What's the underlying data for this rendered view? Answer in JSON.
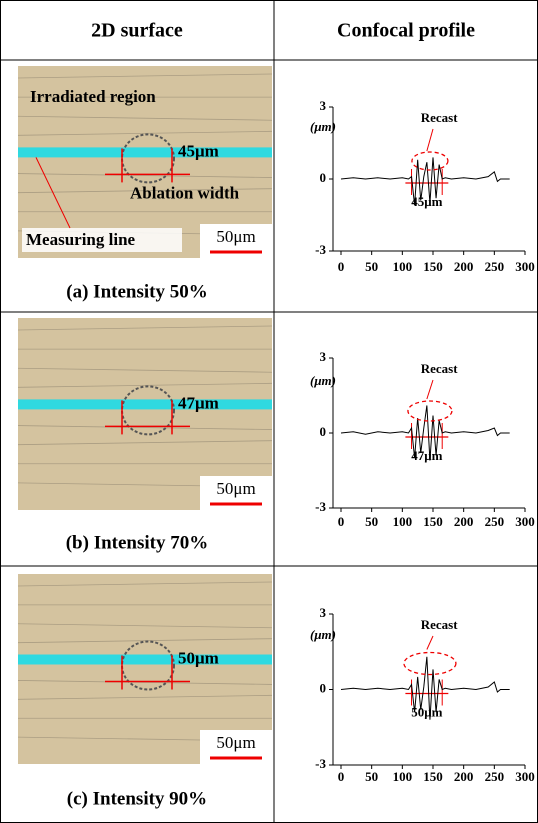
{
  "header": {
    "left": "2D surface",
    "right": "Confocal profile"
  },
  "panels": [
    {
      "caption": "(a) Intensity 50%",
      "image_labels": {
        "region": "Irradiated region",
        "width": "45μm",
        "width_name": "Ablation width",
        "line": "Measuring line",
        "scale": "50μm"
      }
    },
    {
      "caption": "(b) Intensity 70%",
      "image_labels": {
        "width": "47μm",
        "scale": "50μm"
      }
    },
    {
      "caption": "(c) Intensity 90%",
      "image_labels": {
        "width": "50μm",
        "scale": "50μm"
      }
    }
  ],
  "chart_data": [
    {
      "type": "line",
      "ylabel": "(μm)",
      "annotation": "Recast",
      "width_label": "45μm",
      "x": [
        0,
        20,
        40,
        60,
        80,
        100,
        110,
        115,
        120,
        125,
        130,
        135,
        140,
        145,
        150,
        155,
        160,
        165,
        170,
        180,
        200,
        220,
        240,
        250,
        255,
        260,
        275
      ],
      "series": [
        {
          "color": "#000000",
          "values": [
            0,
            0.05,
            0,
            0.05,
            0,
            0.05,
            0,
            0.1,
            -1.1,
            0.8,
            -0.9,
            0.1,
            0.7,
            -1.0,
            0.9,
            -0.8,
            0.6,
            0,
            0.05,
            0,
            0.05,
            0,
            0.1,
            0.3,
            -0.1,
            0,
            0
          ]
        }
      ],
      "xlim": [
        0,
        300
      ],
      "xticks": [
        0,
        50,
        100,
        150,
        200,
        250,
        300
      ],
      "ylim": [
        -3,
        3
      ],
      "yticks": [
        -3,
        0,
        3
      ]
    },
    {
      "type": "line",
      "ylabel": "(μm)",
      "annotation": "Recast",
      "width_label": "47μm",
      "x": [
        0,
        20,
        40,
        60,
        80,
        100,
        110,
        115,
        120,
        125,
        130,
        135,
        140,
        145,
        150,
        155,
        160,
        165,
        170,
        180,
        200,
        220,
        240,
        250,
        255,
        260,
        275
      ],
      "series": [
        {
          "color": "#000000",
          "values": [
            0,
            0.05,
            -0.05,
            0.05,
            0,
            0.05,
            0,
            0.2,
            -1.0,
            0.6,
            -0.8,
            0.2,
            1.1,
            -1.1,
            0.7,
            -0.9,
            0.5,
            0,
            0.05,
            0,
            0.05,
            0,
            0.1,
            0.2,
            -0.1,
            0,
            0
          ]
        }
      ],
      "xlim": [
        0,
        300
      ],
      "xticks": [
        0,
        50,
        100,
        150,
        200,
        250,
        300
      ],
      "ylim": [
        -3,
        3
      ],
      "yticks": [
        -3,
        0,
        3
      ]
    },
    {
      "type": "line",
      "ylabel": "(μm)",
      "annotation": "Recast",
      "width_label": "50μm",
      "x": [
        0,
        20,
        40,
        60,
        80,
        100,
        110,
        115,
        120,
        125,
        130,
        135,
        140,
        145,
        150,
        155,
        160,
        165,
        170,
        180,
        200,
        220,
        240,
        250,
        255,
        260,
        275
      ],
      "series": [
        {
          "color": "#000000",
          "values": [
            0,
            0.05,
            0,
            0.05,
            0,
            0.05,
            0,
            0.2,
            -0.9,
            0.5,
            -0.8,
            0.1,
            1.3,
            -1.2,
            0.8,
            -0.9,
            0.4,
            0,
            0.05,
            0,
            0.05,
            0,
            0.1,
            0.3,
            -0.1,
            0,
            0
          ]
        }
      ],
      "xlim": [
        0,
        300
      ],
      "xticks": [
        0,
        50,
        100,
        150,
        200,
        250,
        300
      ],
      "ylim": [
        -3,
        3
      ],
      "yticks": [
        -3,
        0,
        3
      ]
    }
  ]
}
